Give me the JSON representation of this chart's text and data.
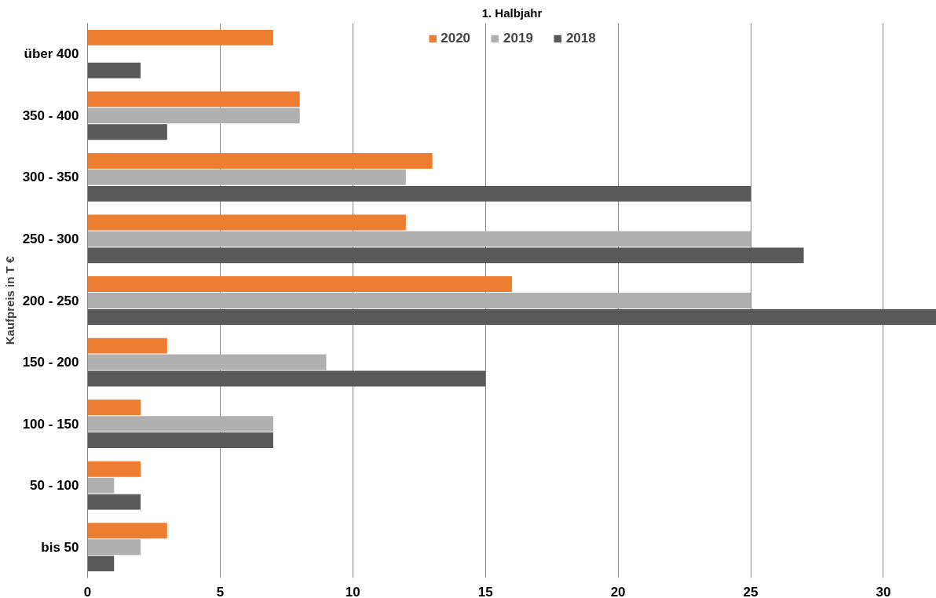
{
  "chart_data": {
    "type": "bar",
    "orientation": "horizontal",
    "title": "1. Halbjahr",
    "ylabel": "Kaufpreis in T €",
    "categories": [
      "über 400",
      "350 - 400",
      "300 - 350",
      "250 - 300",
      "200 - 250",
      "150 - 200",
      "100 - 150",
      "50 - 100",
      "bis 50"
    ],
    "series": [
      {
        "name": "2020",
        "color": "#ed7d31",
        "values": [
          7,
          8,
          13,
          12,
          16,
          3,
          2,
          2,
          3
        ]
      },
      {
        "name": "2019",
        "color": "#b0b0b0",
        "values": [
          null,
          8,
          12,
          25,
          25,
          9,
          7,
          1,
          2
        ]
      },
      {
        "name": "2018",
        "color": "#595959",
        "values": [
          2,
          3,
          25,
          27,
          32,
          15,
          7,
          2,
          1
        ]
      }
    ],
    "xlim": [
      0,
      32
    ],
    "xticks": [
      0,
      5,
      10,
      15,
      20,
      25,
      30
    ],
    "grid": "x",
    "legend": "top"
  }
}
